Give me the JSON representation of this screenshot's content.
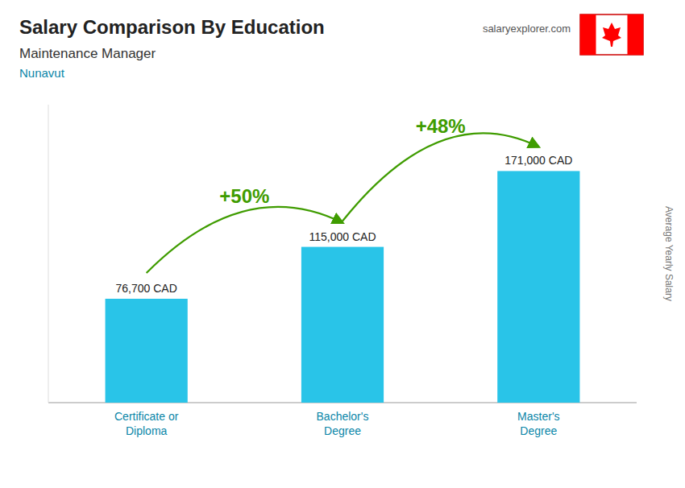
{
  "chart_data": {
    "type": "bar",
    "title": "Salary Comparison By Education",
    "subtitle": [
      "Maintenance Manager",
      "Nunavut"
    ],
    "source": "salaryexplorer.com",
    "ylabel": "Average Yearly Salary",
    "categories": [
      "Certificate or\nDiploma",
      "Bachelor's\nDegree",
      "Master's\nDegree"
    ],
    "values": [
      76700,
      115000,
      171000
    ],
    "value_labels": [
      "76,700 CAD",
      "115,000 CAD",
      "171,000 CAD"
    ],
    "annotations": [
      "+50%",
      "+48%"
    ],
    "color": "#29c4e8",
    "ylim": [
      0,
      220000
    ],
    "data_labels": true,
    "tick_labels": "x",
    "grid": false
  }
}
